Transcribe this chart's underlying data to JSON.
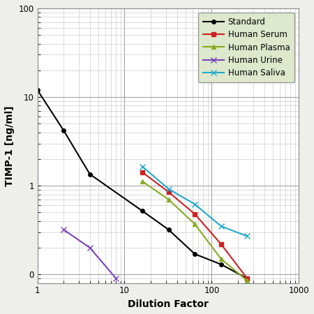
{
  "title": "",
  "xlabel": "Dilution Factor",
  "ylabel": "TIMP-1 [ng/ml]",
  "xlim": [
    1,
    1000
  ],
  "ylim": [
    0.08,
    100
  ],
  "background_color": "#eeeeea",
  "plot_bg_color": "#ffffff",
  "series": [
    {
      "label": "Standard",
      "color": "#000000",
      "marker": "o",
      "markersize": 4,
      "linewidth": 1.5,
      "x": [
        1,
        2,
        4,
        16,
        32,
        64,
        128,
        256
      ],
      "y": [
        12.0,
        4.2,
        1.35,
        0.52,
        0.32,
        0.17,
        0.13,
        0.09
      ]
    },
    {
      "label": "Human Serum",
      "color": "#cc2222",
      "marker": "s",
      "markersize": 5,
      "linewidth": 1.5,
      "x": [
        16,
        32,
        64,
        128,
        256
      ],
      "y": [
        1.42,
        0.85,
        0.48,
        0.22,
        0.09
      ]
    },
    {
      "label": "Human Plasma",
      "color": "#88aa22",
      "marker": "^",
      "markersize": 5,
      "linewidth": 1.5,
      "x": [
        16,
        32,
        64,
        128,
        256
      ],
      "y": [
        1.12,
        0.7,
        0.37,
        0.15,
        0.085
      ]
    },
    {
      "label": "Human Urine",
      "color": "#7744bb",
      "marker": "x",
      "markersize": 6,
      "linewidth": 1.5,
      "x": [
        2,
        4,
        8
      ],
      "y": [
        0.32,
        0.2,
        0.09
      ]
    },
    {
      "label": "Human Saliva",
      "color": "#22aacc",
      "marker": "x",
      "markersize": 6,
      "linewidth": 1.5,
      "x": [
        16,
        32,
        64,
        128,
        256
      ],
      "y": [
        1.65,
        0.92,
        0.62,
        0.35,
        0.27
      ]
    }
  ],
  "legend_bg": "#dde8cc",
  "legend_fontsize": 8.5,
  "axis_fontsize": 10,
  "tick_fontsize": 8.5,
  "ytick_labels": [
    "0",
    "1",
    "10",
    "100"
  ],
  "ytick_positions": [
    0.1,
    1.0,
    10.0,
    100.0
  ],
  "xtick_labels": [
    "1",
    "10",
    "100",
    "1000"
  ],
  "xtick_positions": [
    1,
    10,
    100,
    1000
  ]
}
